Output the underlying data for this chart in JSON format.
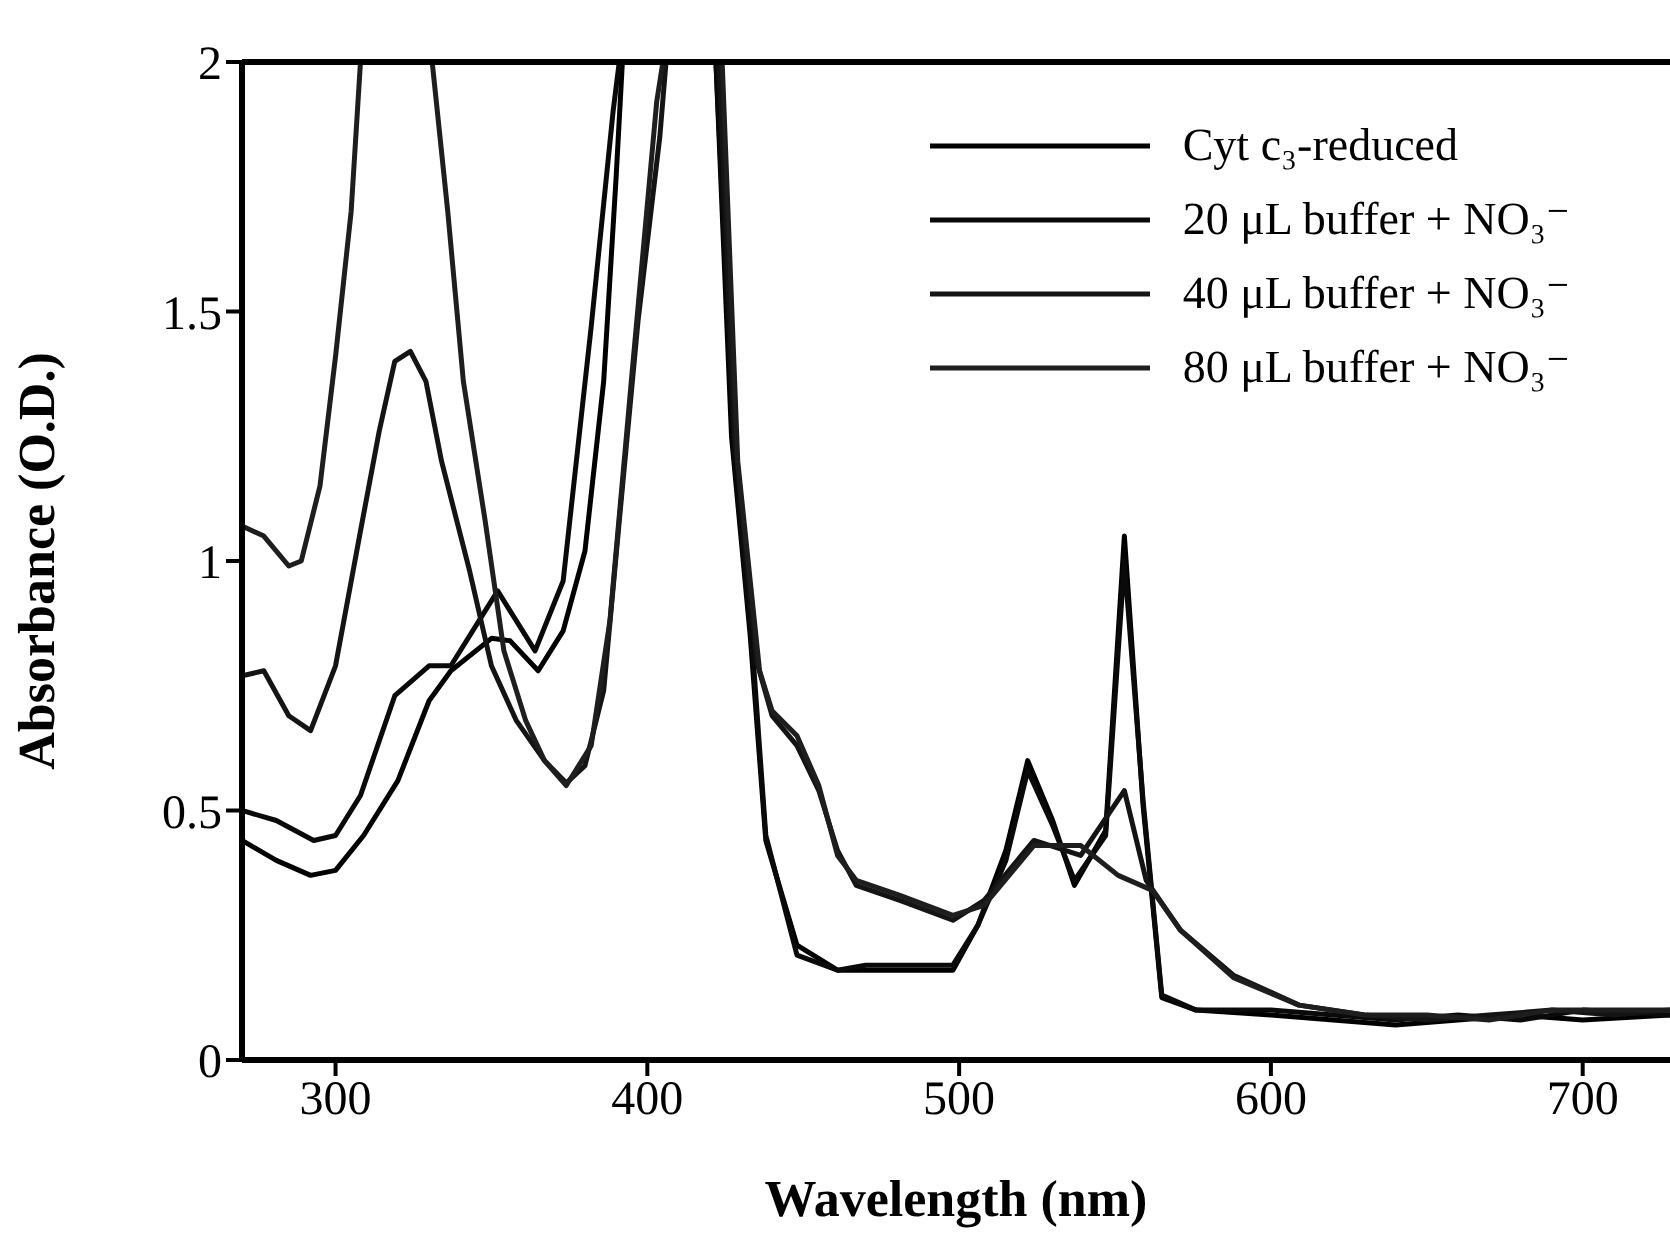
{
  "chart_data": {
    "type": "line",
    "xlabel": "Wavelength (nm)",
    "ylabel": "Absorbance (O.D.)",
    "xlim": [
      270,
      728
    ],
    "xticks": [
      300,
      400,
      500,
      600,
      700
    ],
    "ylim": [
      0,
      2
    ],
    "yticks": [
      0,
      0.5,
      1,
      1.5,
      2
    ],
    "grid": false,
    "legend": "top right",
    "series": [
      {
        "name": "Cyt c₃-reduced",
        "color": "#000000",
        "x": [
          270,
          281,
          292,
          300,
          309,
          320,
          330,
          337,
          350,
          356,
          365,
          373,
          380,
          386,
          390,
          392,
          410,
          422,
          427,
          433,
          438,
          448,
          461,
          470,
          498,
          506,
          515,
          522,
          530,
          537,
          547,
          553,
          559,
          565,
          576,
          600,
          620,
          640,
          660,
          680,
          700,
          728
        ],
        "values": [
          0.44,
          0.4,
          0.37,
          0.38,
          0.45,
          0.56,
          0.72,
          0.78,
          0.845,
          0.84,
          0.78,
          0.86,
          1.02,
          1.36,
          1.77,
          2,
          null,
          2,
          1.25,
          0.85,
          0.44,
          0.23,
          0.18,
          0.18,
          0.18,
          0.27,
          0.42,
          0.6,
          0.48,
          0.35,
          0.46,
          1.05,
          0.51,
          0.125,
          0.1,
          0.09,
          0.08,
          0.07,
          0.08,
          0.09,
          0.08,
          0.09
        ]
      },
      {
        "name": "20 μL buffer + NO₃⁻",
        "color": "#0a0a0a",
        "x": [
          270,
          281,
          293,
          300,
          308,
          319,
          330,
          337,
          352,
          364,
          373,
          382,
          389,
          391,
          410,
          422,
          428,
          434,
          438,
          448,
          461,
          470,
          498,
          506,
          515,
          522,
          530,
          537,
          547,
          553,
          559,
          565,
          576,
          600,
          620,
          640,
          660,
          680,
          700,
          728
        ],
        "values": [
          0.5,
          0.48,
          0.44,
          0.45,
          0.53,
          0.73,
          0.79,
          0.79,
          0.94,
          0.82,
          0.96,
          1.47,
          1.9,
          2,
          null,
          2,
          1.2,
          0.8,
          0.45,
          0.21,
          0.18,
          0.19,
          0.19,
          0.27,
          0.4,
          0.58,
          0.47,
          0.36,
          0.45,
          1.0,
          0.52,
          0.13,
          0.1,
          0.1,
          0.09,
          0.08,
          0.09,
          0.08,
          0.1,
          0.09
        ]
      },
      {
        "name": "40 μL buffer + NO₃⁻",
        "color": "#141414",
        "x": [
          270,
          277,
          285,
          292,
          300,
          308,
          314,
          319,
          324,
          329,
          334,
          343,
          350,
          358,
          367,
          374,
          380,
          386,
          391,
          397,
          404,
          406,
          415,
          423,
          428,
          435,
          440,
          448,
          455,
          461,
          467,
          481,
          498,
          508,
          524,
          539,
          553,
          560,
          571,
          588,
          609,
          630,
          650,
          670,
          690,
          710,
          728
        ],
        "values": [
          0.77,
          0.78,
          0.69,
          0.66,
          0.79,
          1.06,
          1.26,
          1.4,
          1.42,
          1.36,
          1.2,
          0.98,
          0.79,
          0.68,
          0.6,
          0.555,
          0.59,
          0.74,
          1.08,
          1.48,
          1.85,
          2,
          null,
          2,
          1.25,
          0.8,
          0.69,
          0.63,
          0.54,
          0.42,
          0.35,
          0.32,
          0.28,
          0.32,
          0.44,
          0.41,
          0.54,
          0.36,
          0.26,
          0.17,
          0.11,
          0.09,
          0.08,
          0.09,
          0.1,
          0.09,
          0.1
        ]
      },
      {
        "name": "80 μL buffer + NO₃⁻",
        "color": "#1e1e1e",
        "x": [
          270,
          277,
          285,
          289,
          295,
          300,
          305,
          308,
          320,
          331,
          336,
          341,
          348,
          354,
          361,
          367,
          374,
          382,
          388,
          395,
          403,
          405,
          415,
          424,
          429,
          436,
          440,
          448,
          455,
          461,
          467,
          481,
          498,
          508,
          524,
          539,
          551,
          562,
          571,
          588,
          609,
          630,
          650,
          670,
          690,
          710,
          728
        ],
        "values": [
          1.07,
          1.05,
          0.99,
          1.0,
          1.15,
          1.41,
          1.7,
          2,
          null,
          2,
          1.7,
          1.36,
          1.08,
          0.82,
          0.68,
          0.6,
          0.55,
          0.63,
          0.88,
          1.37,
          1.92,
          2,
          null,
          2,
          1.2,
          0.78,
          0.7,
          0.65,
          0.55,
          0.41,
          0.36,
          0.33,
          0.29,
          0.31,
          0.43,
          0.43,
          0.37,
          0.34,
          0.26,
          0.165,
          0.11,
          0.09,
          0.09,
          0.08,
          0.1,
          0.1,
          0.1
        ]
      }
    ]
  }
}
